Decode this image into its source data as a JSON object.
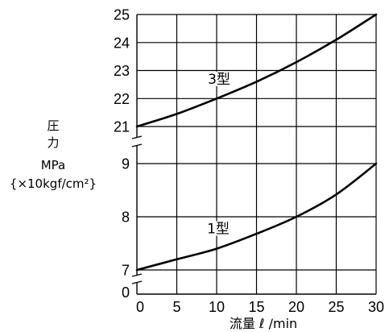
{
  "chart_data": {
    "type": "line",
    "xlabel": "流量 ℓ /min",
    "ylabel_lines": [
      "圧",
      "力",
      "MPa",
      "{×10kgf/cm²}"
    ],
    "xlim": [
      0,
      30
    ],
    "x_ticks": [
      "0",
      "5",
      "10",
      "15",
      "20",
      "25",
      "30"
    ],
    "y_axis_broken": true,
    "y_segments": [
      {
        "range": [
          7,
          9
        ],
        "ticks": [
          "7",
          "8",
          "9"
        ]
      },
      {
        "range": [
          21,
          25
        ],
        "ticks": [
          "21",
          "22",
          "23",
          "24",
          "25"
        ]
      }
    ],
    "y_origin_tick": "0",
    "grid": true,
    "legend": "inline",
    "series": [
      {
        "name": "3型",
        "x": [
          0,
          5,
          10,
          15,
          20,
          25,
          30
        ],
        "y": [
          21.0,
          21.45,
          22.0,
          22.6,
          23.3,
          24.1,
          25.0
        ],
        "color": "#000000"
      },
      {
        "name": "1型",
        "x": [
          0,
          5,
          10,
          15,
          20,
          25,
          30
        ],
        "y": [
          7.0,
          7.2,
          7.4,
          7.68,
          8.0,
          8.42,
          9.0
        ],
        "color": "#000000"
      }
    ]
  }
}
